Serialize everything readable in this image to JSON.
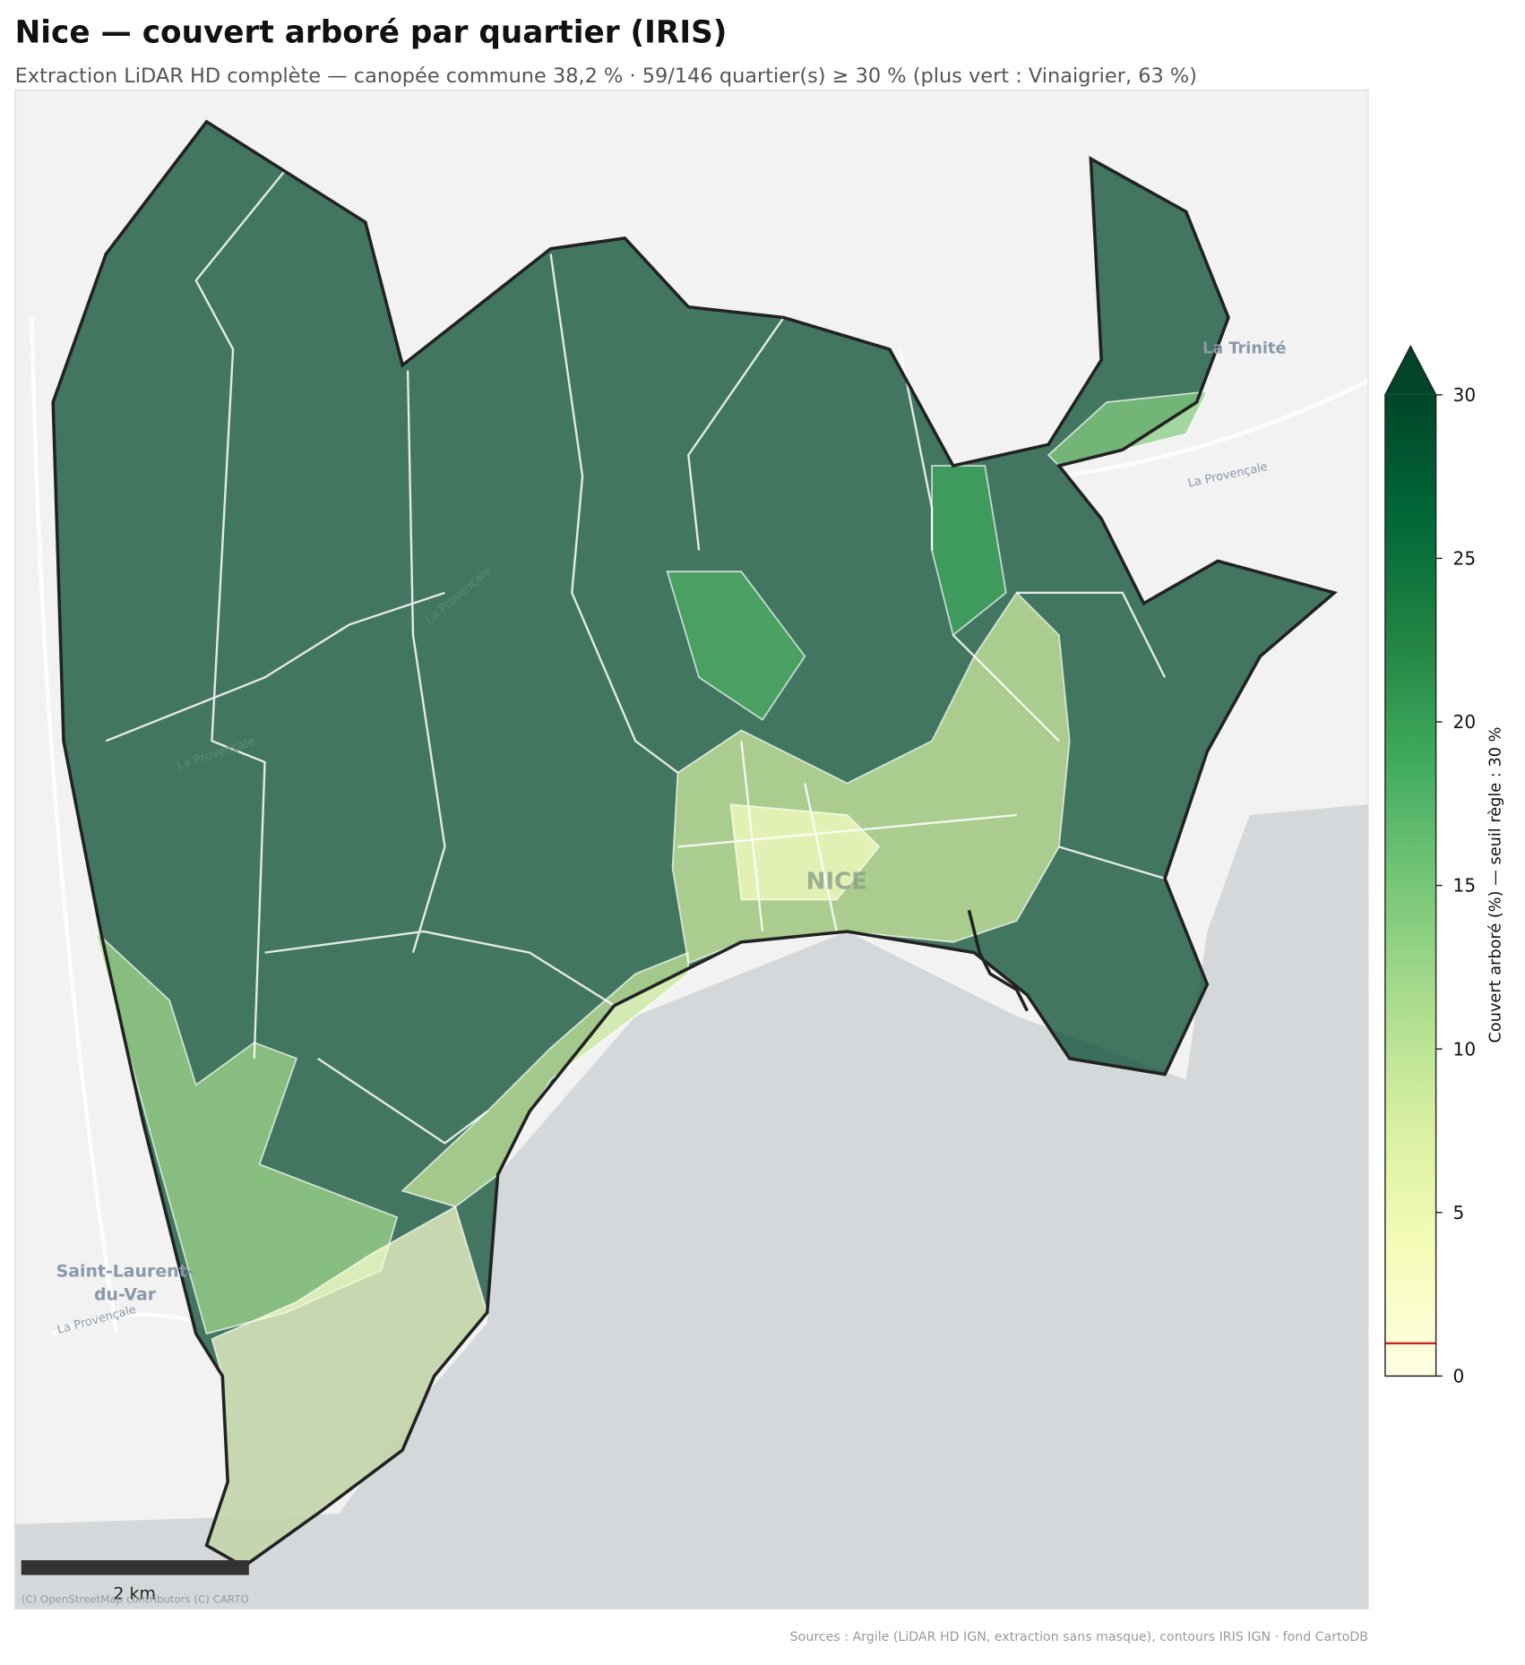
{
  "title": "Nice — couvert arboré par quartier (IRIS)",
  "subtitle": "Extraction LiDAR HD complète — canopée commune 38,2 % · 59/146 quartier(s) ≥ 30 % (plus vert : Vinaigrier, 63 %)",
  "map": {
    "labels": [
      "La Trinité",
      "La Provençale",
      "La Provençale",
      "La Provençale",
      "La Provençale",
      "NICE",
      "Saint-Laurent-",
      "du-Var"
    ],
    "scale_bar": "2 km",
    "attribution": "(C) OpenStreetMap contributors (C) CARTO",
    "zone_values": [
      30,
      12,
      2,
      9,
      8,
      3,
      14,
      18,
      19
    ]
  },
  "colorbar": {
    "label": "Couvert arboré (%) — seuil règle : 30 %",
    "lim": [
      0,
      30
    ],
    "ticks": [
      0,
      5,
      10,
      15,
      20,
      25,
      30
    ],
    "threshold": 1,
    "extend": "max",
    "colors": [
      "#ffffe5",
      "#f7fcb9",
      "#d9f0a3",
      "#addd8e",
      "#78c679",
      "#41ab5d",
      "#238443",
      "#006837",
      "#004529"
    ]
  },
  "sources": "Sources : Argile (LiDAR HD IGN, extraction sans masque), contours IRIS IGN · fond CartoDB"
}
